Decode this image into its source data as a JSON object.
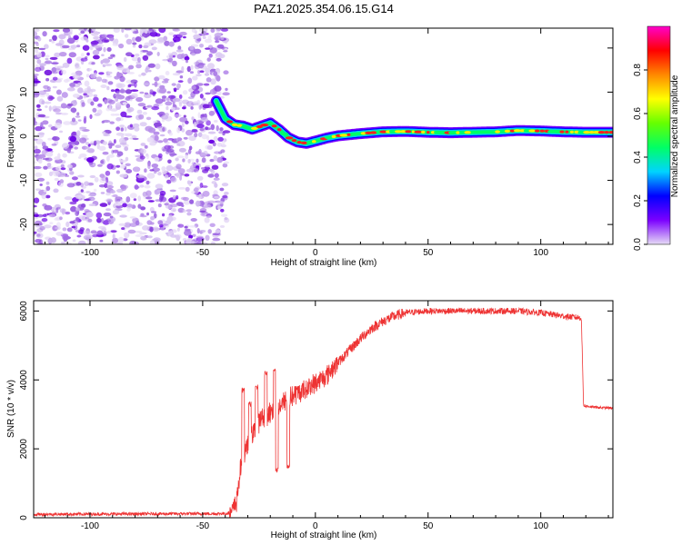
{
  "title": "PAZ1.2025.354.06.15.G14",
  "chart_data": [
    {
      "type": "heatmap",
      "name": "spectrogram",
      "xlabel": "Height of straight line (km)",
      "ylabel": "Frequency (Hz)",
      "xlim": [
        -125,
        132
      ],
      "ylim": [
        -24.5,
        24.5
      ],
      "xticks": [
        -100,
        -50,
        0,
        50,
        100
      ],
      "xtick_labels": [
        "-100",
        "-50",
        "0",
        "50",
        "100"
      ],
      "yticks": [
        -20,
        -10,
        0,
        10,
        20
      ],
      "ytick_labels": [
        "-20",
        "-10",
        "0",
        "10",
        "20"
      ],
      "noise_region_x": [
        -125,
        -41
      ],
      "signal_ridge": {
        "x": [
          -44,
          -40,
          -36,
          -32,
          -28,
          -24,
          -20,
          -16,
          -12,
          -8,
          -4,
          0,
          5,
          10,
          20,
          30,
          40,
          50,
          60,
          70,
          80,
          90,
          100,
          110,
          120,
          132
        ],
        "freq": [
          8.0,
          4.0,
          2.6,
          2.3,
          1.6,
          2.3,
          3.0,
          1.5,
          -0.3,
          -1.3,
          -1.6,
          -1.1,
          -0.4,
          0.1,
          0.6,
          1.0,
          1.1,
          0.9,
          0.8,
          0.9,
          1.0,
          1.3,
          1.2,
          1.0,
          0.9,
          0.9
        ]
      },
      "colorbar": {
        "label": "Normalized spectral amplitude",
        "range": [
          0.0,
          1.0
        ],
        "ticks": [
          0.0,
          0.2,
          0.4,
          0.6,
          0.8
        ],
        "tick_labels": [
          "0.0",
          "0.2",
          "0.4",
          "0.6",
          "0.8"
        ],
        "colors": [
          "#e6dcf5",
          "#7b00ff",
          "#0000ff",
          "#00d4ff",
          "#00ff66",
          "#66ff00",
          "#ffff00",
          "#ff8800",
          "#ff0000",
          "#ff00cc"
        ]
      }
    },
    {
      "type": "line",
      "name": "snr",
      "xlabel": "Height of straight line (km)",
      "ylabel": "SNR (10 * v/v)",
      "xlim": [
        -125,
        132
      ],
      "ylim": [
        0,
        6300
      ],
      "xticks": [
        -100,
        -50,
        0,
        50,
        100
      ],
      "xtick_labels": [
        "-100",
        "-50",
        "0",
        "50",
        "100"
      ],
      "yticks": [
        0,
        2000,
        4000,
        6000
      ],
      "ytick_labels": [
        "0",
        "2000",
        "4000",
        "6000"
      ],
      "line_color": "#ee3333",
      "envelope": {
        "x": [
          -125,
          -40,
          -37,
          -35,
          -33,
          -31,
          -29,
          -27,
          -25,
          -23,
          -21,
          -19,
          -17,
          -15,
          -12,
          -8,
          -4,
          0,
          5,
          10,
          15,
          20,
          25,
          30,
          35,
          40,
          50,
          60,
          70,
          80,
          90,
          100,
          110,
          118,
          119,
          125,
          132
        ],
        "snr": [
          100,
          120,
          150,
          500,
          1500,
          1900,
          2400,
          2500,
          2800,
          2950,
          3000,
          3100,
          3200,
          3300,
          3450,
          3600,
          3750,
          3900,
          4150,
          4500,
          4850,
          5200,
          5500,
          5700,
          5850,
          5950,
          6000,
          6000,
          6000,
          6000,
          6000,
          5950,
          5850,
          5800,
          3250,
          3200,
          3180
        ]
      },
      "spikes": [
        {
          "x": -32,
          "snr": 3700
        },
        {
          "x": -29,
          "snr": 3300
        },
        {
          "x": -26,
          "snr": 3800
        },
        {
          "x": -22,
          "snr": 4200
        },
        {
          "x": -18,
          "snr": 4300
        },
        {
          "x": -17,
          "snr": 1400
        },
        {
          "x": -12,
          "snr": 1500
        }
      ]
    }
  ]
}
